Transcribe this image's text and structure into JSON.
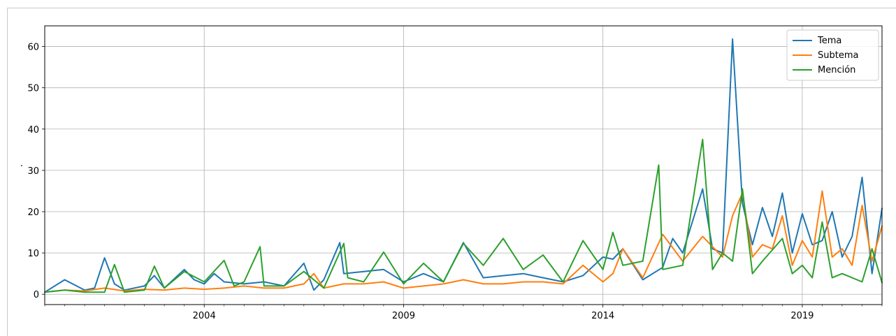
{
  "chart_data": {
    "type": "line",
    "title": "",
    "xlabel": "",
    "ylabel": "·",
    "xlim": [
      2000.0,
      2021.0
    ],
    "ylim": [
      -2.5,
      65
    ],
    "grid": true,
    "legend_position": "top-right",
    "x_ticks": [
      2004,
      2009,
      2014,
      2019
    ],
    "x_tick_labels": [
      "2004",
      "2009",
      "2014",
      "2019"
    ],
    "y_ticks": [
      0,
      10,
      20,
      30,
      40,
      50,
      60
    ],
    "y_tick_labels": [
      "0",
      "10",
      "20",
      "30",
      "40",
      "50",
      "60"
    ],
    "series": [
      {
        "name": "Tema",
        "color": "#1f77b4",
        "x": [
          2000.0,
          2000.5,
          2001.0,
          2001.25,
          2001.5,
          2001.75,
          2002.0,
          2002.5,
          2002.75,
          2003.0,
          2003.5,
          2003.75,
          2004.0,
          2004.25,
          2004.5,
          2005.0,
          2005.5,
          2006.0,
          2006.5,
          2006.75,
          2007.0,
          2007.4,
          2007.5,
          2008.0,
          2008.5,
          2009.0,
          2009.5,
          2010.0,
          2010.5,
          2011.0,
          2011.5,
          2012.0,
          2012.5,
          2013.0,
          2013.5,
          2014.0,
          2014.25,
          2014.5,
          2015.0,
          2015.5,
          2015.75,
          2016.0,
          2016.5,
          2016.75,
          2017.0,
          2017.25,
          2017.5,
          2017.75,
          2018.0,
          2018.25,
          2018.5,
          2018.75,
          2019.0,
          2019.25,
          2019.5,
          2019.75,
          2020.0,
          2020.25,
          2020.5,
          2020.75,
          2021.0
        ],
        "values": [
          0.5,
          3.5,
          1.0,
          1.5,
          8.8,
          2.5,
          1.0,
          2.0,
          4.5,
          1.5,
          6.0,
          3.5,
          2.5,
          5.0,
          3.0,
          2.5,
          3.0,
          2.0,
          7.5,
          1.0,
          3.5,
          12.5,
          5.0,
          5.5,
          6.0,
          3.0,
          5.0,
          3.0,
          12.5,
          4.0,
          4.5,
          5.0,
          4.0,
          3.0,
          4.5,
          9.0,
          8.5,
          11.0,
          3.5,
          6.5,
          13.5,
          10.0,
          25.5,
          11.0,
          10.0,
          61.8,
          22.0,
          12.0,
          21.0,
          14.0,
          24.5,
          10.0,
          19.5,
          12.0,
          13.0,
          20.0,
          9.0,
          14.0,
          28.3,
          5.0,
          20.8
        ]
      },
      {
        "name": "Subtema",
        "color": "#ff7f0e",
        "x": [
          2000.0,
          2000.5,
          2001.0,
          2001.5,
          2002.0,
          2002.5,
          2003.0,
          2003.5,
          2004.0,
          2004.5,
          2005.0,
          2005.5,
          2006.0,
          2006.5,
          2006.75,
          2007.0,
          2007.5,
          2008.0,
          2008.5,
          2009.0,
          2009.5,
          2010.0,
          2010.5,
          2011.0,
          2011.5,
          2012.0,
          2012.5,
          2013.0,
          2013.5,
          2014.0,
          2014.25,
          2014.5,
          2015.0,
          2015.5,
          2016.0,
          2016.5,
          2017.0,
          2017.25,
          2017.5,
          2017.75,
          2018.0,
          2018.25,
          2018.5,
          2018.75,
          2019.0,
          2019.25,
          2019.5,
          2019.75,
          2020.0,
          2020.25,
          2020.5,
          2020.75,
          2021.0
        ],
        "values": [
          0.5,
          1.0,
          0.8,
          1.5,
          0.8,
          1.2,
          1.0,
          1.5,
          1.2,
          1.5,
          2.0,
          1.5,
          1.5,
          2.5,
          5.0,
          1.5,
          2.5,
          2.5,
          3.0,
          1.5,
          2.0,
          2.5,
          3.5,
          2.5,
          2.5,
          3.0,
          3.0,
          2.5,
          7.0,
          3.0,
          5.0,
          11.0,
          4.0,
          14.5,
          8.0,
          14.0,
          9.0,
          19.0,
          24.5,
          9.0,
          12.0,
          11.0,
          19.0,
          7.0,
          13.0,
          9.0,
          25.0,
          9.0,
          11.0,
          7.0,
          21.5,
          8.0,
          16.5
        ]
      },
      {
        "name": "Mención",
        "color": "#2ca02c",
        "x": [
          2000.0,
          2000.5,
          2001.0,
          2001.5,
          2001.75,
          2002.0,
          2002.5,
          2002.75,
          2003.0,
          2003.5,
          2004.0,
          2004.5,
          2004.75,
          2005.0,
          2005.4,
          2005.5,
          2006.0,
          2006.5,
          2007.0,
          2007.5,
          2007.6,
          2008.0,
          2008.5,
          2009.0,
          2009.5,
          2010.0,
          2010.5,
          2011.0,
          2011.5,
          2012.0,
          2012.5,
          2013.0,
          2013.5,
          2014.0,
          2014.25,
          2014.5,
          2015.0,
          2015.4,
          2015.5,
          2016.0,
          2016.5,
          2016.75,
          2017.0,
          2017.25,
          2017.5,
          2017.75,
          2018.0,
          2018.5,
          2018.75,
          2019.0,
          2019.25,
          2019.5,
          2019.75,
          2020.0,
          2020.5,
          2020.75,
          2021.0
        ],
        "values": [
          0.5,
          1.0,
          0.5,
          0.5,
          7.2,
          0.5,
          1.0,
          6.8,
          1.5,
          5.5,
          3.0,
          8.2,
          2.0,
          3.0,
          11.5,
          2.0,
          2.0,
          5.5,
          1.5,
          12.3,
          4.0,
          3.0,
          10.2,
          2.5,
          7.5,
          3.0,
          12.3,
          7.0,
          13.5,
          6.0,
          9.5,
          3.0,
          13.0,
          6.0,
          15.0,
          7.0,
          8.0,
          31.3,
          6.0,
          7.0,
          37.5,
          6.0,
          10.0,
          8.0,
          25.5,
          5.0,
          8.0,
          13.5,
          5.0,
          7.0,
          4.0,
          17.5,
          4.0,
          5.0,
          3.0,
          11.0,
          2.8
        ]
      }
    ]
  }
}
